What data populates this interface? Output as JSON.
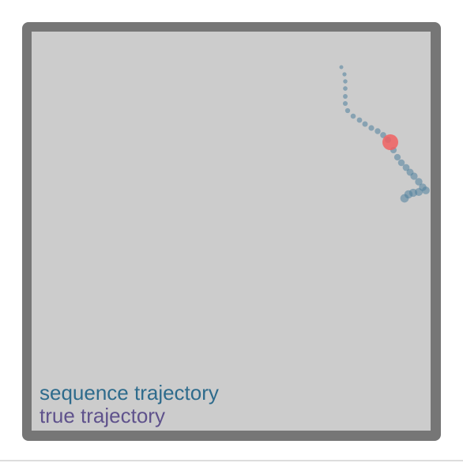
{
  "legend": {
    "items": [
      {
        "label": "sequence trajectory"
      },
      {
        "label": "true trajectory"
      }
    ]
  }
}
